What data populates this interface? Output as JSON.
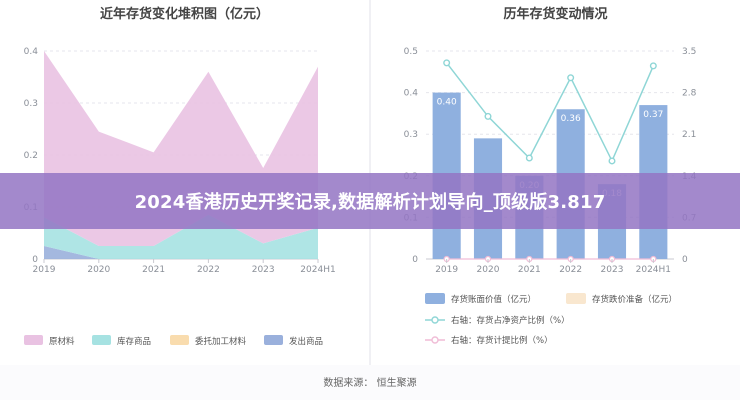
{
  "banner": {
    "text": "2024香港历史开奖记录,数据解析计划导向_顶级版3.817"
  },
  "footer": {
    "source": "数据来源：  恒生聚源"
  },
  "colors": {
    "raw_material": "#e9c2e2",
    "finished_goods": "#a6e2e2",
    "consigned": "#f9dcae",
    "shipped": "#9ab0dc",
    "bar": "#8fb0df",
    "impairment": "#f9e7cf",
    "line_ratio": "#8fd6d6",
    "line_provision": "#f0bcd6",
    "banner": "#9476c4"
  },
  "chart_data": [
    {
      "type": "area",
      "title": "近年存货变化堆积图（亿元）",
      "categories": [
        "2019",
        "2020",
        "2021",
        "2022",
        "2023",
        "2024H1"
      ],
      "ylim": [
        0,
        0.4
      ],
      "yticks": [
        "0",
        "0.1",
        "0.2",
        "0.3",
        "0.4"
      ],
      "stacked": true,
      "series": [
        {
          "name": "发出商品",
          "color_key": "shipped",
          "values": [
            0.025,
            0.0,
            0.0,
            0.0,
            0.0,
            0.0
          ]
        },
        {
          "name": "委托加工材料",
          "color_key": "consigned",
          "values": [
            0.0,
            0.0,
            0.0,
            0.0,
            0.0,
            0.0
          ]
        },
        {
          "name": "库存商品",
          "color_key": "finished_goods",
          "values": [
            0.055,
            0.025,
            0.025,
            0.085,
            0.03,
            0.06
          ]
        },
        {
          "name": "原材料",
          "color_key": "raw_material",
          "values": [
            0.32,
            0.22,
            0.18,
            0.275,
            0.145,
            0.31
          ]
        }
      ],
      "legend": [
        "原材料",
        "库存商品",
        "委托加工材料",
        "发出商品"
      ],
      "legend_position": "bottom",
      "grid": true
    },
    {
      "type": "bar",
      "title": "历年存货变动情况",
      "categories": [
        "2019",
        "2020",
        "2021",
        "2022",
        "2023",
        "2024H1"
      ],
      "ylim": [
        0,
        0.5
      ],
      "yticks": [
        "0",
        "0.1",
        "0.2",
        "0.3",
        "0.4",
        "0.5"
      ],
      "y2lim": [
        0,
        3.5
      ],
      "y2ticks": [
        "0",
        "0.7",
        "1.4",
        "2.1",
        "2.8",
        "3.5"
      ],
      "series": [
        {
          "name": "存货账面价值（亿元）",
          "type": "bar",
          "axis": "left",
          "color_key": "bar",
          "values": [
            0.4,
            0.29,
            0.2,
            0.36,
            0.18,
            0.37
          ],
          "labels": [
            "0.40",
            "",
            "0.20",
            "0.36",
            "0.18",
            "0.37"
          ]
        },
        {
          "name": "存货跌价准备（亿元）",
          "type": "bar",
          "axis": "left",
          "color_key": "impairment",
          "values": [
            0,
            0,
            0,
            0,
            0,
            0
          ]
        },
        {
          "name": "右轴：存货占净资产比例（%）",
          "type": "line",
          "axis": "right",
          "color_key": "line_ratio",
          "values": [
            3.3,
            2.4,
            1.7,
            3.05,
            1.65,
            3.25
          ]
        },
        {
          "name": "右轴：存货计提比例（%）",
          "type": "line",
          "axis": "right",
          "color_key": "line_provision",
          "values": [
            0,
            0,
            0,
            0,
            0,
            0
          ]
        }
      ],
      "legend_position": "bottom",
      "grid": true
    }
  ]
}
